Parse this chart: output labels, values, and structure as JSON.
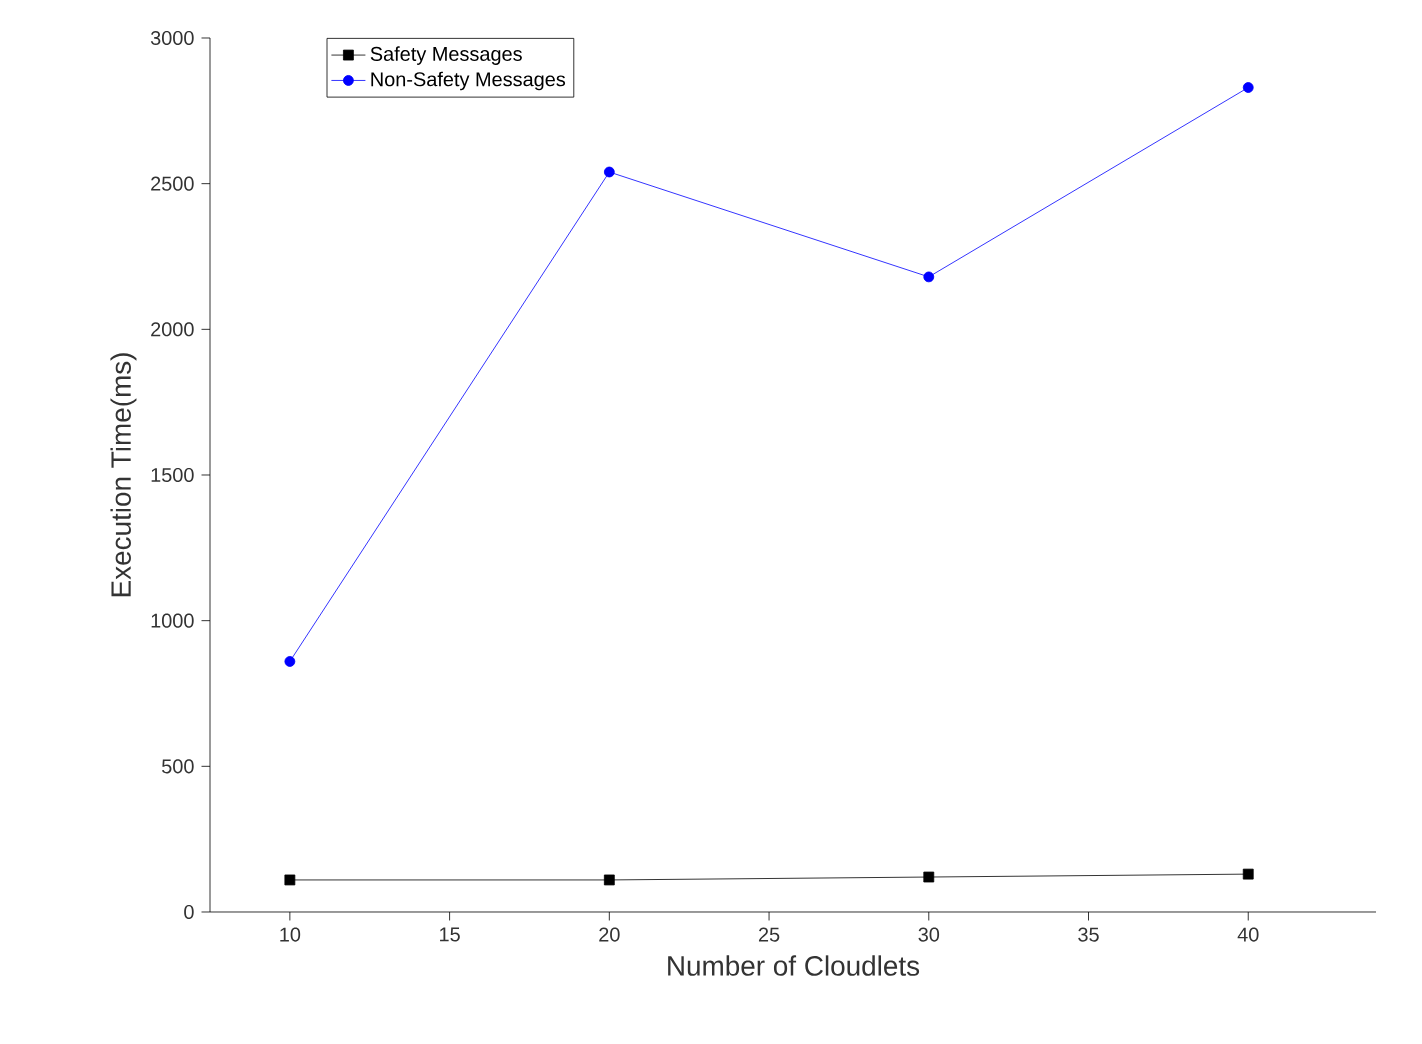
{
  "chart_data": {
    "type": "line",
    "xlabel": "Number of Cloudlets",
    "ylabel": "Execution Time(ms)",
    "x": [
      10,
      20,
      30,
      40
    ],
    "series": [
      {
        "name": "Safety Messages",
        "color": "#000000",
        "marker": "square",
        "values": [
          110,
          110,
          120,
          130
        ]
      },
      {
        "name": "Non-Safety Messages",
        "color": "#0000ff",
        "marker": "circle",
        "values": [
          860,
          2540,
          2180,
          2830
        ]
      }
    ],
    "xlim": [
      7.5,
      44
    ],
    "ylim": [
      0,
      3000
    ],
    "xticks": [
      10,
      15,
      20,
      25,
      30,
      35,
      40
    ],
    "yticks": [
      0,
      500,
      1000,
      1500,
      2000,
      2500,
      3000
    ],
    "grid": false,
    "legend": "top left",
    "line_style": "solid"
  }
}
